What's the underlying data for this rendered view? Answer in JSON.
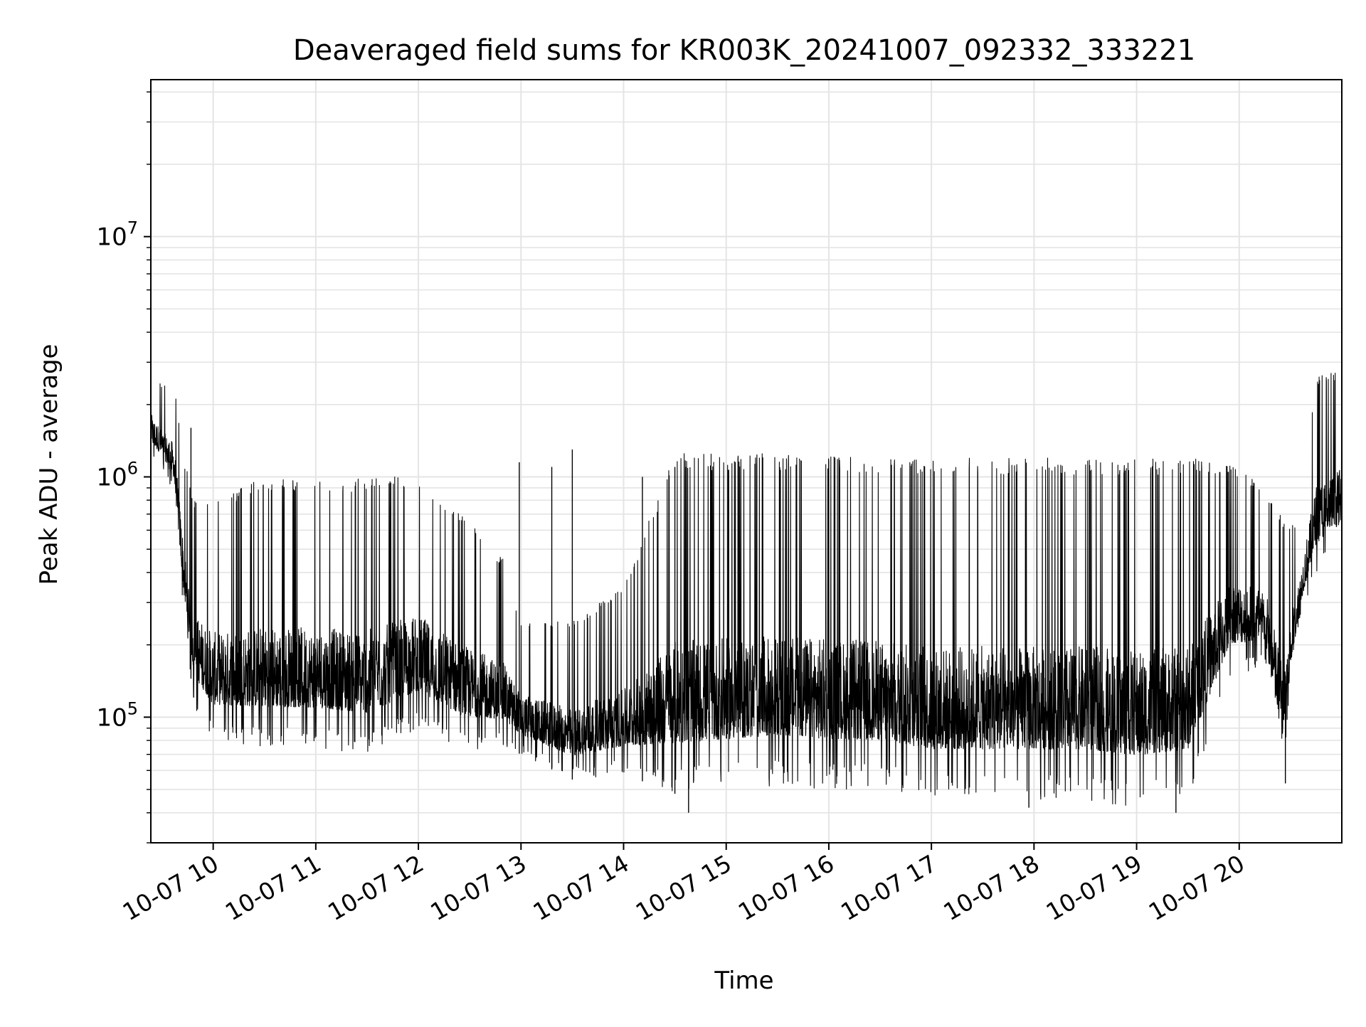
{
  "chart_data": {
    "type": "line",
    "title": "Deaveraged field sums for KR003K_20241007_092332_333221",
    "xlabel": "Time",
    "ylabel": "Peak ADU - average",
    "yscale": "log",
    "ylim": [
      30000,
      45000000
    ],
    "xlim": [
      "2024-10-07 09:23:32",
      "2024-10-07 21:00:00"
    ],
    "grid": true,
    "line_color": "#000000",
    "x_ticks": [
      {
        "value": "2024-10-07 10:00",
        "label": "10-07 10"
      },
      {
        "value": "2024-10-07 11:00",
        "label": "10-07 11"
      },
      {
        "value": "2024-10-07 12:00",
        "label": "10-07 12"
      },
      {
        "value": "2024-10-07 13:00",
        "label": "10-07 13"
      },
      {
        "value": "2024-10-07 14:00",
        "label": "10-07 14"
      },
      {
        "value": "2024-10-07 15:00",
        "label": "10-07 15"
      },
      {
        "value": "2024-10-07 16:00",
        "label": "10-07 16"
      },
      {
        "value": "2024-10-07 17:00",
        "label": "10-07 17"
      },
      {
        "value": "2024-10-07 18:00",
        "label": "10-07 18"
      },
      {
        "value": "2024-10-07 19:00",
        "label": "10-07 19"
      },
      {
        "value": "2024-10-07 20:00",
        "label": "10-07 20"
      }
    ],
    "y_ticks": [
      {
        "value": 100000,
        "base": "10",
        "exp": "5"
      },
      {
        "value": 1000000,
        "base": "10",
        "exp": "6"
      },
      {
        "value": 10000000,
        "base": "10",
        "exp": "7"
      }
    ],
    "series": [
      {
        "profile": [
          {
            "t": "2024-10-07 09:24",
            "low": 1200000,
            "high": 3000000
          },
          {
            "t": "2024-10-07 09:30",
            "low": 1100000,
            "high": 2400000
          },
          {
            "t": "2024-10-07 09:37",
            "low": 850000,
            "high": 2500000
          },
          {
            "t": "2024-10-07 09:43",
            "low": 250000,
            "high": 1200000
          },
          {
            "t": "2024-10-07 09:49",
            "low": 110000,
            "high": 800000
          },
          {
            "t": "2024-10-07 10:00",
            "low": 80000,
            "high": 800000
          },
          {
            "t": "2024-10-07 10:30",
            "low": 75000,
            "high": 1000000
          },
          {
            "t": "2024-10-07 11:00",
            "low": 75000,
            "high": 950000
          },
          {
            "t": "2024-10-07 11:30",
            "low": 70000,
            "high": 1000000
          },
          {
            "t": "2024-10-07 12:00",
            "low": 90000,
            "high": 1000000
          },
          {
            "t": "2024-10-07 12:26",
            "low": 72000,
            "high": 700000
          },
          {
            "t": "2024-10-07 12:50",
            "low": 75000,
            "high": 450000
          },
          {
            "t": "2024-10-07 13:00",
            "low": 70000,
            "high": 250000
          },
          {
            "t": "2024-10-07 13:30",
            "low": 55000,
            "high": 250000
          },
          {
            "t": "2024-10-07 14:00",
            "low": 58000,
            "high": 350000
          },
          {
            "t": "2024-10-07 14:30",
            "low": 48000,
            "high": 1250000
          },
          {
            "t": "2024-10-07 15:00",
            "low": 50000,
            "high": 1250000
          },
          {
            "t": "2024-10-07 15:30",
            "low": 52000,
            "high": 1250000
          },
          {
            "t": "2024-10-07 16:00",
            "low": 50000,
            "high": 1250000
          },
          {
            "t": "2024-10-07 16:30",
            "low": 50000,
            "high": 1200000
          },
          {
            "t": "2024-10-07 17:00",
            "low": 45000,
            "high": 1200000
          },
          {
            "t": "2024-10-07 17:30",
            "low": 45000,
            "high": 1200000
          },
          {
            "t": "2024-10-07 18:00",
            "low": 45000,
            "high": 1200000
          },
          {
            "t": "2024-10-07 18:30",
            "low": 45000,
            "high": 1200000
          },
          {
            "t": "2024-10-07 19:00",
            "low": 42000,
            "high": 1200000
          },
          {
            "t": "2024-10-07 19:30",
            "low": 45000,
            "high": 1200000
          },
          {
            "t": "2024-10-07 19:55",
            "low": 150000,
            "high": 1150000
          },
          {
            "t": "2024-10-07 20:15",
            "low": 160000,
            "high": 900000
          },
          {
            "t": "2024-10-07 20:25",
            "low": 55000,
            "high": 700000
          },
          {
            "t": "2024-10-07 20:35",
            "low": 250000,
            "high": 600000
          },
          {
            "t": "2024-10-07 20:45",
            "low": 400000,
            "high": 2600000
          },
          {
            "t": "2024-10-07 21:00",
            "low": 500000,
            "high": 2800000
          }
        ],
        "spikes": [
          {
            "t": "2024-10-07 09:47",
            "value": 1600000
          },
          {
            "t": "2024-10-07 12:59",
            "value": 1150000
          },
          {
            "t": "2024-10-07 13:18",
            "value": 1100000
          },
          {
            "t": "2024-10-07 13:30",
            "value": 1300000
          },
          {
            "t": "2024-10-07 14:11",
            "value": 1000000
          },
          {
            "t": "2024-10-07 14:30",
            "value": 1100000
          }
        ],
        "dips": [
          {
            "t": "2024-10-07 14:38",
            "value": 40000
          },
          {
            "t": "2024-10-07 17:57",
            "value": 42000
          },
          {
            "t": "2024-10-07 19:23",
            "value": 40000
          },
          {
            "t": "2024-10-07 20:27",
            "value": 53000
          }
        ]
      }
    ]
  }
}
